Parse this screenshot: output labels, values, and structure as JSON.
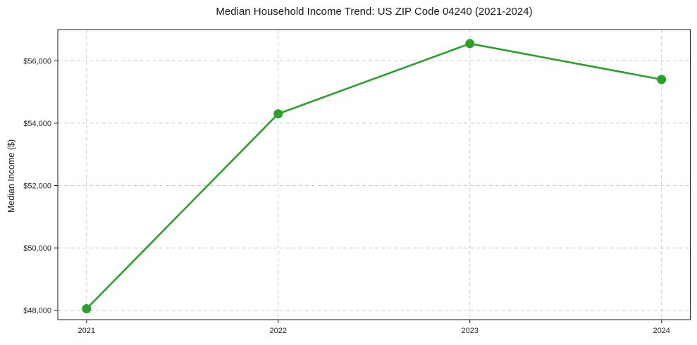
{
  "chart_data": {
    "type": "line",
    "title": "Median Household Income Trend: US ZIP Code 04240 (2021-2024)",
    "xlabel": "",
    "ylabel": "Median Income ($)",
    "x": [
      2021,
      2022,
      2023,
      2024
    ],
    "series": [
      {
        "name": "Median Household Income",
        "values": [
          48050,
          54300,
          56550,
          55400
        ],
        "color": "#2ca02c",
        "marker": "circle"
      }
    ],
    "x_ticks": [
      {
        "value": 2021,
        "label": "2021"
      },
      {
        "value": 2022,
        "label": "2022"
      },
      {
        "value": 2023,
        "label": "2023"
      },
      {
        "value": 2024,
        "label": "2024"
      }
    ],
    "y_ticks": [
      {
        "value": 48000,
        "label": "$48,000"
      },
      {
        "value": 50000,
        "label": "$50,000"
      },
      {
        "value": 52000,
        "label": "$52,000"
      },
      {
        "value": 54000,
        "label": "$54,000"
      },
      {
        "value": 56000,
        "label": "$56,000"
      }
    ],
    "xlim": [
      2020.85,
      2024.15
    ],
    "ylim": [
      47700,
      57000
    ],
    "grid": {
      "show": true,
      "axes": "both",
      "line_style": "dashed",
      "color": "#cccccc"
    },
    "legend": {
      "show": false
    },
    "styles": {
      "line_color": "#2ca02c",
      "line_width": 2.6,
      "marker_radius": 6.5,
      "spine_color": "#1a1a1a",
      "tick_color": "#1a1a1a",
      "text_color": "#262626",
      "background": "#ffffff"
    }
  }
}
